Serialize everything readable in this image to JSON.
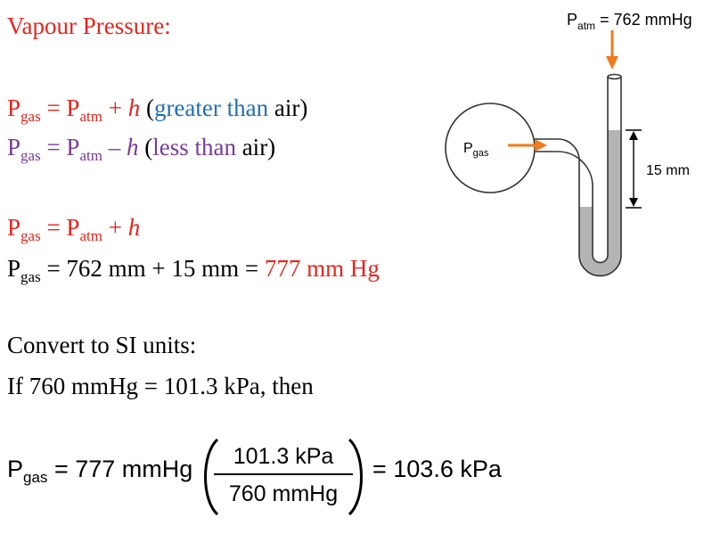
{
  "heading": "Vapour Pressure:",
  "eq1": {
    "p": "P",
    "p_sub": "gas",
    "eq": " = P",
    "atm_sub": "atm",
    "plus_h_op": " + ",
    "h": "h",
    "paren_open": "  (",
    "greater": "greater than",
    "air": " air)"
  },
  "eq2": {
    "p": "P",
    "p_sub": "gas",
    "eq": " = P",
    "atm_sub": "atm",
    "minus_op": " – ",
    "h": "h",
    "paren_open": "  (",
    "less": "less than",
    "air": " air)"
  },
  "eq3": {
    "p": "P",
    "p_sub": "gas",
    "eq": " = P",
    "atm_sub": "atm",
    "op": " + ",
    "h": "h"
  },
  "eq4": {
    "p": "P",
    "p_sub": "gas",
    "rest": " = 762 mm + 15 mm = ",
    "result": "777 mm Hg"
  },
  "convert_line": "Convert to SI units:",
  "if_line": "If 760 mmHg = 101.3 kPa, then",
  "diagram": {
    "patm_label": "P",
    "patm_sub": "atm",
    "patm_value": " = 762 mmHg",
    "pgas_label": "P",
    "pgas_sub": "gas",
    "height_label": "15 mm"
  },
  "formula": {
    "lhs": "P",
    "lhs_sub": "gas",
    "eq_value": " = 777 mmHg",
    "numerator": "101.3 kPa",
    "denominator": "760 mmHg",
    "result": "= 103.6 kPa"
  },
  "colors": {
    "red": "#e8231c",
    "blue": "#1f6fb2",
    "purple": "#7a3a9a",
    "arrow_orange": "#f07a1e",
    "mercury_gray": "#b4b4b4"
  }
}
